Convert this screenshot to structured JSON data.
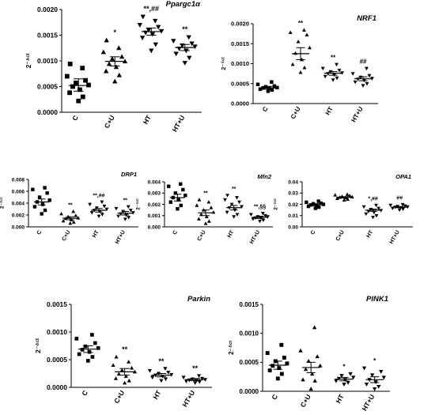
{
  "chart_data": [
    {
      "type": "scatter",
      "title": "Ppargc1α",
      "ylabel": "2⁻ᐞᶜᵗ",
      "ylim": [
        0,
        0.002
      ],
      "yticks": [
        "0.0000",
        "0.0005",
        "0.0010",
        "0.0015",
        "0.0020"
      ],
      "categories": [
        "C",
        "C+U",
        "HT",
        "HT+U"
      ],
      "annotations": [
        "",
        "*",
        "**,##",
        "**"
      ],
      "series": [
        {
          "category": "C",
          "marker": "square",
          "mean": 0.00052,
          "sem_high": 0.00065,
          "sem_low": 0.00041,
          "values": [
            0.00022,
            0.0003,
            0.00038,
            0.00044,
            0.0005,
            0.00053,
            0.00057,
            0.00062,
            0.0007,
            0.00086,
            0.00094
          ]
        },
        {
          "category": "C+U",
          "marker": "triangle",
          "mean": 0.00099,
          "sem_high": 0.00108,
          "sem_low": 0.0009,
          "values": [
            0.0006,
            0.00072,
            0.0008,
            0.00088,
            0.00094,
            0.00099,
            0.00104,
            0.00108,
            0.00117,
            0.00125,
            0.0014
          ]
        },
        {
          "category": "HT",
          "marker": "triangle-down",
          "mean": 0.00157,
          "sem_high": 0.00164,
          "sem_low": 0.0015,
          "values": [
            0.0012,
            0.00132,
            0.00145,
            0.00152,
            0.00155,
            0.00158,
            0.0016,
            0.00166,
            0.0017,
            0.00178,
            0.00186
          ]
        },
        {
          "category": "HT+U",
          "marker": "triangle-down",
          "mean": 0.00126,
          "sem_high": 0.00132,
          "sem_low": 0.0012,
          "values": [
            0.00096,
            0.00106,
            0.00114,
            0.0012,
            0.00124,
            0.00128,
            0.0013,
            0.00134,
            0.00139,
            0.00146
          ]
        }
      ]
    },
    {
      "type": "scatter",
      "title": "NRF1",
      "ylabel": "2⁻ᐞᶜᵗ",
      "ylim": [
        0,
        0.002
      ],
      "yticks": [
        "0.0000",
        "0.0005",
        "0.0010",
        "0.0015",
        "0.0020"
      ],
      "categories": [
        "C",
        "C+U",
        "HT",
        "HT+U"
      ],
      "annotations": [
        "",
        "**",
        "**",
        "##"
      ],
      "series": [
        {
          "category": "C",
          "marker": "square",
          "mean": 0.00039,
          "sem_high": 0.00043,
          "sem_low": 0.00036,
          "values": [
            0.00031,
            0.00034,
            0.00036,
            0.00038,
            0.00039,
            0.0004,
            0.00042,
            0.00044,
            0.00048,
            0.00054
          ]
        },
        {
          "category": "C+U",
          "marker": "triangle",
          "mean": 0.00125,
          "sem_high": 0.0014,
          "sem_low": 0.0011,
          "values": [
            0.00078,
            0.0009,
            0.00098,
            0.0011,
            0.00126,
            0.0014,
            0.00155,
            0.00172,
            0.00178,
            0.00184
          ]
        },
        {
          "category": "HT",
          "marker": "triangle-down",
          "mean": 0.00076,
          "sem_high": 0.0008,
          "sem_low": 0.00071,
          "values": [
            0.00059,
            0.00064,
            0.00068,
            0.00072,
            0.00075,
            0.00077,
            0.0008,
            0.00083,
            0.00088,
            0.00098
          ]
        },
        {
          "category": "HT+U",
          "marker": "triangle-down",
          "mean": 0.00062,
          "sem_high": 0.00067,
          "sem_low": 0.00057,
          "values": [
            0.00045,
            0.0005,
            0.00054,
            0.00058,
            0.00061,
            0.00063,
            0.00066,
            0.0007,
            0.00075,
            0.00088
          ]
        }
      ]
    },
    {
      "type": "scatter",
      "title": "DRP1",
      "ylabel": "2⁻ᐞᶜᵗ",
      "ylim": [
        0,
        0.008
      ],
      "yticks": [
        "0.000",
        "0.002",
        "0.004",
        "0.006",
        "0.008"
      ],
      "categories": [
        "C",
        "C+U",
        "HT",
        "HT+U"
      ],
      "annotations": [
        "",
        "**",
        "**,##",
        "**"
      ],
      "series": [
        {
          "category": "C",
          "marker": "square",
          "mean": 0.0042,
          "sem_high": 0.0047,
          "sem_low": 0.0037,
          "values": [
            0.0022,
            0.0028,
            0.0034,
            0.0038,
            0.0042,
            0.0045,
            0.005,
            0.0057,
            0.0063,
            0.0066
          ]
        },
        {
          "category": "C+U",
          "marker": "triangle",
          "mean": 0.00145,
          "sem_high": 0.0017,
          "sem_low": 0.0012,
          "values": [
            0.0006,
            0.0008,
            0.001,
            0.0012,
            0.0014,
            0.0015,
            0.0017,
            0.0019,
            0.0022,
            0.0026
          ]
        },
        {
          "category": "HT",
          "marker": "triangle-down",
          "mean": 0.0028,
          "sem_high": 0.0031,
          "sem_low": 0.0025,
          "values": [
            0.0018,
            0.0021,
            0.0024,
            0.0026,
            0.0028,
            0.003,
            0.0032,
            0.0035,
            0.0038,
            0.0042
          ]
        },
        {
          "category": "HT+U",
          "marker": "triangle-down",
          "mean": 0.0023,
          "sem_high": 0.0026,
          "sem_low": 0.002,
          "values": [
            0.0013,
            0.0016,
            0.0018,
            0.002,
            0.0022,
            0.0024,
            0.0026,
            0.0028,
            0.0031,
            0.0034
          ]
        }
      ]
    },
    {
      "type": "scatter",
      "title": "Mfn2",
      "ylabel": "2⁻ᐞᶜᵗ",
      "ylim": [
        0,
        0.004
      ],
      "yticks": [
        "0.000",
        "0.001",
        "0.002",
        "0.003",
        "0.004"
      ],
      "categories": [
        "C",
        "C+U",
        "HT",
        "HT+U"
      ],
      "annotations": [
        "",
        "**",
        "**",
        "**,§§"
      ],
      "series": [
        {
          "category": "C",
          "marker": "square",
          "mean": 0.0026,
          "sem_high": 0.0029,
          "sem_low": 0.0023,
          "values": [
            0.0016,
            0.0019,
            0.0022,
            0.0024,
            0.0026,
            0.0028,
            0.003,
            0.0033,
            0.0036,
            0.0038
          ]
        },
        {
          "category": "C+U",
          "marker": "triangle",
          "mean": 0.00125,
          "sem_high": 0.0015,
          "sem_low": 0.001,
          "values": [
            0.0003,
            0.0005,
            0.0007,
            0.0009,
            0.0011,
            0.0013,
            0.0015,
            0.0017,
            0.0019,
            0.0022,
            0.0024
          ]
        },
        {
          "category": "HT",
          "marker": "triangle-down",
          "mean": 0.0017,
          "sem_high": 0.0019,
          "sem_low": 0.0015,
          "values": [
            0.0009,
            0.0011,
            0.0013,
            0.0015,
            0.0017,
            0.0018,
            0.002,
            0.0022,
            0.0024,
            0.0026,
            0.0028
          ]
        },
        {
          "category": "HT+U",
          "marker": "triangle-down",
          "mean": 0.00085,
          "sem_high": 0.00095,
          "sem_low": 0.00075,
          "values": [
            0.0005,
            0.0006,
            0.0007,
            0.0008,
            0.0008,
            0.0009,
            0.0009,
            0.001,
            0.0011,
            0.0012
          ]
        }
      ]
    },
    {
      "type": "scatter",
      "title": "OPA1",
      "ylabel": "2⁻ᐞᶜᵗ",
      "ylim": [
        0,
        0.04
      ],
      "yticks": [
        "0.00",
        "0.01",
        "0.02",
        "0.03",
        "0.04"
      ],
      "categories": [
        "C",
        "C+U",
        "HT",
        "HT+U"
      ],
      "annotations": [
        "",
        "",
        "*,##",
        "##"
      ],
      "series": [
        {
          "category": "C",
          "marker": "square",
          "mean": 0.0197,
          "sem_high": 0.0206,
          "sem_low": 0.0188,
          "values": [
            0.0165,
            0.0175,
            0.0182,
            0.0188,
            0.0195,
            0.02,
            0.0205,
            0.021,
            0.0218,
            0.0228
          ]
        },
        {
          "category": "C+U",
          "marker": "triangle",
          "mean": 0.0262,
          "sem_high": 0.0268,
          "sem_low": 0.0256,
          "values": [
            0.0238,
            0.0245,
            0.0252,
            0.0258,
            0.0262,
            0.0266,
            0.027,
            0.0276,
            0.0282,
            0.0288
          ]
        },
        {
          "category": "HT",
          "marker": "triangle-down",
          "mean": 0.0148,
          "sem_high": 0.0158,
          "sem_low": 0.0138,
          "values": [
            0.0085,
            0.01,
            0.0115,
            0.0128,
            0.0138,
            0.0146,
            0.0155,
            0.0165,
            0.0178,
            0.0192
          ]
        },
        {
          "category": "HT+U",
          "marker": "triangle-down",
          "mean": 0.0175,
          "sem_high": 0.018,
          "sem_low": 0.017,
          "values": [
            0.015,
            0.0158,
            0.0165,
            0.017,
            0.0175,
            0.0178,
            0.0182,
            0.0186,
            0.0192,
            0.0198
          ]
        }
      ]
    },
    {
      "type": "scatter",
      "title": "Parkin",
      "ylabel": "2⁻ᐞᶜᵗ",
      "ylim": [
        0,
        0.0015
      ],
      "yticks": [
        "0.0000",
        "0.0005",
        "0.0010",
        "0.0015"
      ],
      "categories": [
        "C",
        "C+U",
        "HT",
        "HT+U"
      ],
      "annotations": [
        "",
        "**",
        "**",
        "**"
      ],
      "series": [
        {
          "category": "C",
          "marker": "square",
          "mean": 0.00069,
          "sem_high": 0.00075,
          "sem_low": 0.00063,
          "values": [
            0.00048,
            0.00055,
            0.0006,
            0.00064,
            0.00068,
            0.00071,
            0.00074,
            0.0008,
            0.00088,
            0.00095
          ]
        },
        {
          "category": "C+U",
          "marker": "triangle",
          "mean": 0.00028,
          "sem_high": 0.00034,
          "sem_low": 0.00022,
          "values": [
            8e-05,
            0.00012,
            0.00016,
            0.0002,
            0.00024,
            0.00028,
            0.00031,
            0.00035,
            0.0004,
            0.00046,
            0.00055
          ]
        },
        {
          "category": "HT",
          "marker": "triangle-down",
          "mean": 0.00022,
          "sem_high": 0.00025,
          "sem_low": 0.00019,
          "values": [
            0.00012,
            0.00015,
            0.00018,
            0.0002,
            0.00022,
            0.00023,
            0.00025,
            0.00027,
            0.0003,
            0.00034
          ]
        },
        {
          "category": "HT+U",
          "marker": "triangle-down",
          "mean": 0.00014,
          "sem_high": 0.00016,
          "sem_low": 0.00012,
          "values": [
            8e-05,
            0.0001,
            0.00011,
            0.00012,
            0.00013,
            0.00014,
            0.00015,
            0.00016,
            0.00018,
            0.00021
          ]
        }
      ]
    },
    {
      "type": "scatter",
      "title": "PINK1",
      "ylabel": "2⁻ᐞᶜᵗ",
      "ylim": [
        0,
        0.0015
      ],
      "yticks": [
        "0.0000",
        "0.0005",
        "0.0010",
        "0.0015"
      ],
      "categories": [
        "C",
        "C+U",
        "HT",
        "HT+U"
      ],
      "annotations": [
        "",
        "",
        "*",
        "*"
      ],
      "series": [
        {
          "category": "C",
          "marker": "square",
          "mean": 0.00045,
          "sem_high": 0.00052,
          "sem_low": 0.00038,
          "values": [
            0.00022,
            0.0003,
            0.00036,
            0.0004,
            0.00044,
            0.00048,
            0.00052,
            0.00058,
            0.00066,
            0.0008
          ]
        },
        {
          "category": "C+U",
          "marker": "triangle",
          "mean": 0.00041,
          "sem_high": 0.0005,
          "sem_low": 0.00032,
          "values": [
            4e-05,
            0.00018,
            0.0002,
            0.0003,
            0.00038,
            0.00044,
            0.00052,
            0.0006,
            0.0007,
            0.0011
          ]
        },
        {
          "category": "HT",
          "marker": "triangle-down",
          "mean": 0.00021,
          "sem_high": 0.00024,
          "sem_low": 0.00018,
          "values": [
            0.00012,
            0.00015,
            0.00018,
            0.0002,
            0.00022,
            0.00024,
            0.00027,
            0.0003
          ]
        },
        {
          "category": "HT+U",
          "marker": "triangle-down",
          "mean": 0.0002,
          "sem_high": 0.00025,
          "sem_low": 0.00015,
          "values": [
            4e-05,
            8e-05,
            0.00012,
            0.00016,
            0.0002,
            0.00024,
            0.00028,
            0.00034,
            0.0004
          ]
        }
      ]
    }
  ]
}
